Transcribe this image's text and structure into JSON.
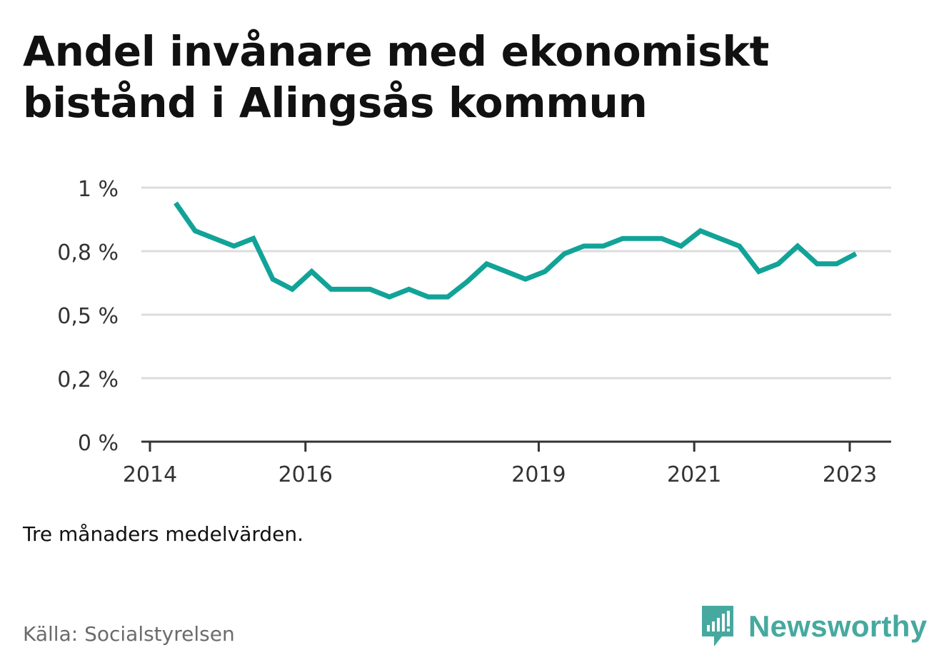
{
  "title": "Andel invånare med ekonomiskt bistånd i Alingsås kommun",
  "note": "Tre månaders medelvärden.",
  "source": "Källa: Socialstyrelsen",
  "brand": {
    "name": "Newsworthy",
    "icon": "bar-chart-speech-bubble-icon",
    "color": "#46a99f"
  },
  "chart_data": {
    "type": "line",
    "title": "Andel invånare med ekonomiskt bistånd i Alingsås kommun",
    "xlabel": "",
    "ylabel": "",
    "x_ticks": [
      "2014",
      "2016",
      "2019",
      "2021",
      "2023"
    ],
    "y_ticks": [
      "0 %",
      "0,2 %",
      "0,5 %",
      "0,8 %",
      "1 %"
    ],
    "xlim": [
      2014.0,
      2023.5
    ],
    "ylim": [
      0,
      1.0
    ],
    "grid": true,
    "line_color": "#12a398",
    "series": [
      {
        "x": [
          2014.33,
          2014.58,
          2014.83,
          2015.08,
          2015.33,
          2015.58,
          2015.83,
          2016.08,
          2016.33,
          2016.58,
          2016.83,
          2017.08,
          2017.33,
          2017.58,
          2017.83,
          2018.08,
          2018.33,
          2018.58,
          2018.83,
          2019.08,
          2019.33,
          2019.58,
          2019.83,
          2020.08,
          2020.33,
          2020.58,
          2020.83,
          2021.08,
          2021.33,
          2021.58,
          2021.83,
          2022.08,
          2022.33,
          2022.58,
          2022.83,
          2023.08
        ],
        "values": [
          0.94,
          0.83,
          0.8,
          0.77,
          0.8,
          0.64,
          0.6,
          0.67,
          0.6,
          0.6,
          0.6,
          0.57,
          0.6,
          0.57,
          0.57,
          0.63,
          0.7,
          0.67,
          0.64,
          0.67,
          0.74,
          0.77,
          0.77,
          0.8,
          0.8,
          0.8,
          0.77,
          0.83,
          0.8,
          0.77,
          0.67,
          0.7,
          0.77,
          0.7,
          0.7,
          0.74
        ]
      }
    ]
  }
}
